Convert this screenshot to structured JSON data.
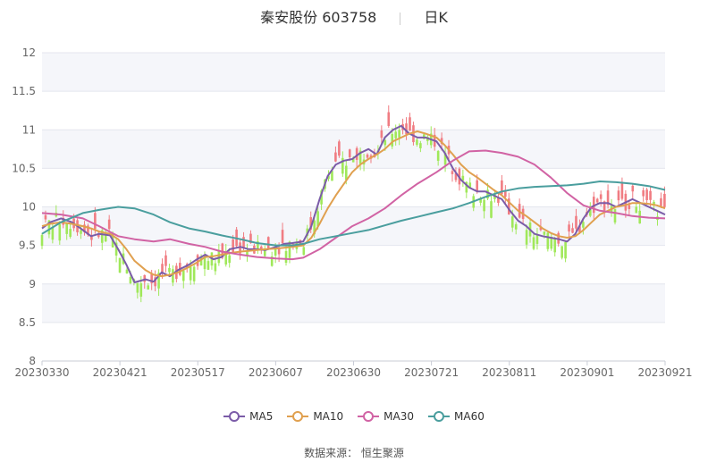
{
  "title": {
    "stock": "秦安股份 603758",
    "period": "日K"
  },
  "source": {
    "label": "数据来源：",
    "value": "恒生聚源"
  },
  "chart_data": {
    "type": "line",
    "title": "秦安股份 603758 日K",
    "ylim": [
      8,
      12
    ],
    "y_ticks": [
      "12",
      "11.5",
      "11",
      "10.5",
      "10",
      "9.5",
      "9",
      "8.5",
      "8"
    ],
    "x_ticks": [
      "20230330",
      "20230421",
      "20230517",
      "20230607",
      "20230630",
      "20230721",
      "20230811",
      "20230901",
      "20230921"
    ],
    "grid": "horizontal",
    "legend_position": "bottom",
    "candle_colors": {
      "up": "#f07c82",
      "down": "#a0e85a"
    },
    "series": [
      {
        "name": "MA5",
        "color": "#7b5ca8",
        "points": [
          [
            0,
            9.72
          ],
          [
            3,
            9.8
          ],
          [
            7,
            9.85
          ],
          [
            11,
            9.8
          ],
          [
            15,
            9.7
          ],
          [
            18,
            9.62
          ],
          [
            21,
            9.65
          ],
          [
            25,
            9.63
          ],
          [
            28,
            9.45
          ],
          [
            31,
            9.25
          ],
          [
            34,
            9.02
          ],
          [
            38,
            9.06
          ],
          [
            41,
            9.03
          ],
          [
            44,
            9.15
          ],
          [
            47,
            9.1
          ],
          [
            50,
            9.18
          ],
          [
            54,
            9.25
          ],
          [
            57,
            9.32
          ],
          [
            60,
            9.38
          ],
          [
            63,
            9.32
          ],
          [
            66,
            9.35
          ],
          [
            69,
            9.45
          ],
          [
            73,
            9.48
          ],
          [
            76,
            9.45
          ],
          [
            79,
            9.45
          ],
          [
            82,
            9.44
          ],
          [
            86,
            9.48
          ],
          [
            89,
            9.52
          ],
          [
            92,
            9.53
          ],
          [
            96,
            9.55
          ],
          [
            99,
            9.75
          ],
          [
            102,
            10.1
          ],
          [
            105,
            10.4
          ],
          [
            108,
            10.55
          ],
          [
            111,
            10.6
          ],
          [
            114,
            10.62
          ],
          [
            117,
            10.7
          ],
          [
            120,
            10.75
          ],
          [
            123,
            10.68
          ],
          [
            126,
            10.9
          ],
          [
            129,
            11.0
          ],
          [
            132,
            11.05
          ],
          [
            135,
            10.95
          ],
          [
            138,
            10.9
          ],
          [
            141,
            10.9
          ],
          [
            145,
            10.85
          ],
          [
            148,
            10.7
          ],
          [
            151,
            10.5
          ],
          [
            154,
            10.35
          ],
          [
            157,
            10.25
          ],
          [
            160,
            10.2
          ],
          [
            163,
            10.2
          ],
          [
            166,
            10.15
          ],
          [
            169,
            10.1
          ],
          [
            172,
            9.95
          ],
          [
            175,
            9.82
          ],
          [
            178,
            9.75
          ],
          [
            181,
            9.65
          ],
          [
            184,
            9.62
          ],
          [
            187,
            9.6
          ],
          [
            190,
            9.58
          ],
          [
            193,
            9.55
          ],
          [
            196,
            9.65
          ],
          [
            199,
            9.85
          ],
          [
            202,
            10.0
          ],
          [
            205,
            10.05
          ],
          [
            208,
            10.05
          ],
          [
            211,
            10.0
          ],
          [
            214,
            10.05
          ],
          [
            217,
            10.1
          ],
          [
            220,
            10.05
          ],
          [
            223,
            10.0
          ],
          [
            226,
            9.95
          ],
          [
            229,
            9.9
          ]
        ]
      },
      {
        "name": "MA10",
        "color": "#e0a04f",
        "points": [
          [
            0,
            9.75
          ],
          [
            3,
            9.78
          ],
          [
            7,
            9.8
          ],
          [
            11,
            9.78
          ],
          [
            15,
            9.75
          ],
          [
            18,
            9.72
          ],
          [
            21,
            9.68
          ],
          [
            25,
            9.65
          ],
          [
            28,
            9.58
          ],
          [
            31,
            9.45
          ],
          [
            34,
            9.3
          ],
          [
            38,
            9.18
          ],
          [
            41,
            9.12
          ],
          [
            44,
            9.1
          ],
          [
            47,
            9.12
          ],
          [
            50,
            9.15
          ],
          [
            54,
            9.22
          ],
          [
            57,
            9.28
          ],
          [
            60,
            9.35
          ],
          [
            63,
            9.36
          ],
          [
            66,
            9.38
          ],
          [
            69,
            9.4
          ],
          [
            73,
            9.42
          ],
          [
            76,
            9.43
          ],
          [
            79,
            9.44
          ],
          [
            82,
            9.45
          ],
          [
            86,
            9.46
          ],
          [
            89,
            9.47
          ],
          [
            92,
            9.48
          ],
          [
            96,
            9.5
          ],
          [
            99,
            9.6
          ],
          [
            102,
            9.78
          ],
          [
            105,
            9.98
          ],
          [
            108,
            10.15
          ],
          [
            111,
            10.3
          ],
          [
            114,
            10.45
          ],
          [
            117,
            10.55
          ],
          [
            120,
            10.62
          ],
          [
            123,
            10.68
          ],
          [
            126,
            10.75
          ],
          [
            129,
            10.85
          ],
          [
            132,
            10.9
          ],
          [
            135,
            10.95
          ],
          [
            138,
            10.98
          ],
          [
            141,
            10.95
          ],
          [
            145,
            10.9
          ],
          [
            148,
            10.8
          ],
          [
            151,
            10.68
          ],
          [
            154,
            10.55
          ],
          [
            157,
            10.45
          ],
          [
            160,
            10.38
          ],
          [
            163,
            10.3
          ],
          [
            166,
            10.22
          ],
          [
            169,
            10.15
          ],
          [
            172,
            10.05
          ],
          [
            175,
            9.95
          ],
          [
            178,
            9.88
          ],
          [
            181,
            9.8
          ],
          [
            184,
            9.72
          ],
          [
            187,
            9.66
          ],
          [
            190,
            9.62
          ],
          [
            193,
            9.6
          ],
          [
            196,
            9.62
          ],
          [
            199,
            9.7
          ],
          [
            202,
            9.8
          ],
          [
            205,
            9.9
          ],
          [
            208,
            9.95
          ],
          [
            211,
            10.0
          ],
          [
            214,
            10.02
          ],
          [
            217,
            10.05
          ],
          [
            220,
            10.05
          ],
          [
            223,
            10.04
          ],
          [
            226,
            10.02
          ],
          [
            229,
            9.98
          ]
        ]
      },
      {
        "name": "MA30",
        "color": "#d163a4",
        "points": [
          [
            0,
            9.92
          ],
          [
            7,
            9.9
          ],
          [
            15,
            9.85
          ],
          [
            21,
            9.75
          ],
          [
            28,
            9.62
          ],
          [
            34,
            9.58
          ],
          [
            41,
            9.55
          ],
          [
            47,
            9.58
          ],
          [
            54,
            9.52
          ],
          [
            60,
            9.48
          ],
          [
            66,
            9.42
          ],
          [
            73,
            9.38
          ],
          [
            79,
            9.35
          ],
          [
            86,
            9.33
          ],
          [
            92,
            9.32
          ],
          [
            96,
            9.34
          ],
          [
            102,
            9.45
          ],
          [
            108,
            9.6
          ],
          [
            114,
            9.75
          ],
          [
            120,
            9.85
          ],
          [
            126,
            9.98
          ],
          [
            132,
            10.15
          ],
          [
            138,
            10.3
          ],
          [
            145,
            10.45
          ],
          [
            151,
            10.6
          ],
          [
            157,
            10.72
          ],
          [
            163,
            10.73
          ],
          [
            169,
            10.7
          ],
          [
            175,
            10.65
          ],
          [
            181,
            10.55
          ],
          [
            187,
            10.38
          ],
          [
            193,
            10.18
          ],
          [
            199,
            10.02
          ],
          [
            205,
            9.95
          ],
          [
            211,
            9.92
          ],
          [
            217,
            9.88
          ],
          [
            223,
            9.86
          ],
          [
            229,
            9.85
          ]
        ]
      },
      {
        "name": "MA60",
        "color": "#4a9e9e",
        "points": [
          [
            0,
            9.65
          ],
          [
            7,
            9.8
          ],
          [
            15,
            9.92
          ],
          [
            21,
            9.96
          ],
          [
            28,
            10.0
          ],
          [
            34,
            9.98
          ],
          [
            41,
            9.9
          ],
          [
            47,
            9.8
          ],
          [
            54,
            9.72
          ],
          [
            60,
            9.68
          ],
          [
            66,
            9.63
          ],
          [
            73,
            9.58
          ],
          [
            79,
            9.53
          ],
          [
            86,
            9.5
          ],
          [
            92,
            9.5
          ],
          [
            96,
            9.52
          ],
          [
            102,
            9.58
          ],
          [
            108,
            9.62
          ],
          [
            114,
            9.66
          ],
          [
            120,
            9.7
          ],
          [
            126,
            9.76
          ],
          [
            132,
            9.82
          ],
          [
            138,
            9.87
          ],
          [
            145,
            9.93
          ],
          [
            151,
            9.98
          ],
          [
            157,
            10.05
          ],
          [
            163,
            10.13
          ],
          [
            169,
            10.2
          ],
          [
            175,
            10.24
          ],
          [
            181,
            10.26
          ],
          [
            187,
            10.27
          ],
          [
            193,
            10.28
          ],
          [
            199,
            10.3
          ],
          [
            205,
            10.33
          ],
          [
            211,
            10.32
          ],
          [
            217,
            10.3
          ],
          [
            223,
            10.27
          ],
          [
            229,
            10.22
          ]
        ]
      }
    ]
  }
}
